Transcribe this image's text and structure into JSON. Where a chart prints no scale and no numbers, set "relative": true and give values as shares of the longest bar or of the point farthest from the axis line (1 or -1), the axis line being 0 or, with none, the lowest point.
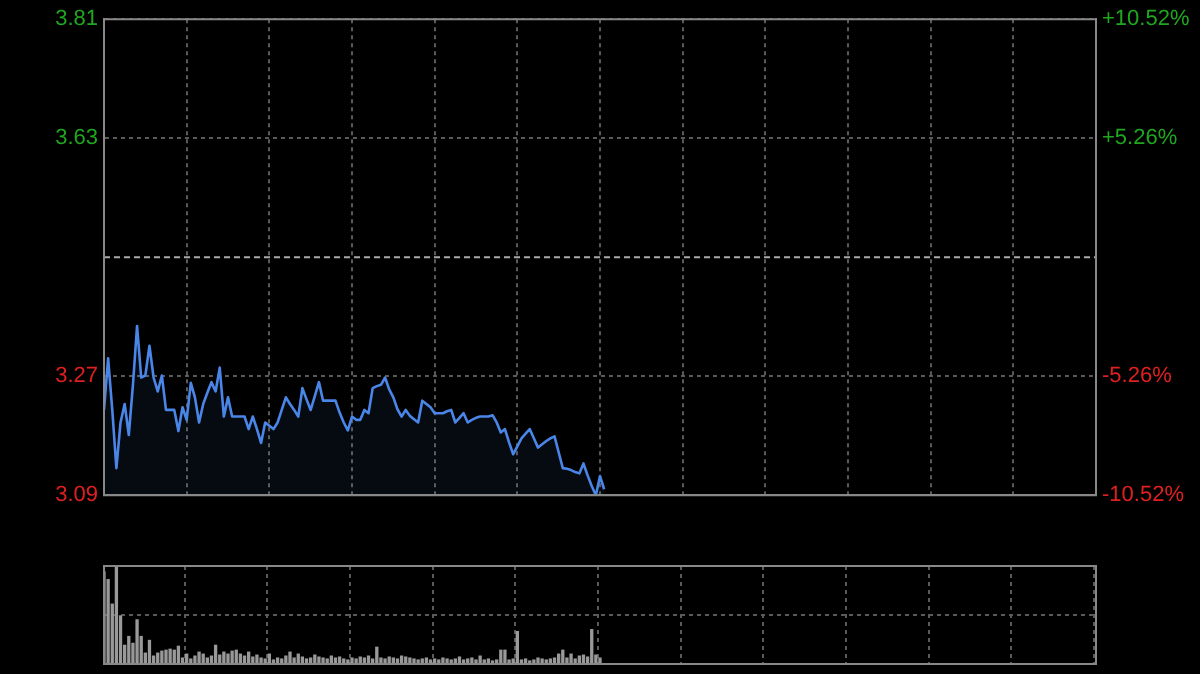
{
  "chart_data": [
    {
      "type": "area",
      "categories": [
        null,
        null,
        null,
        null,
        null,
        null,
        null,
        null,
        null,
        null,
        null,
        null,
        null,
        null,
        null,
        null,
        null,
        null,
        null,
        null,
        null,
        null,
        null,
        null,
        null,
        null,
        null,
        null,
        null,
        null,
        null,
        null,
        null,
        null,
        null,
        null,
        null,
        null,
        null,
        null,
        null,
        null,
        null,
        null,
        null,
        null,
        null,
        null,
        null,
        null,
        null,
        null,
        null,
        null,
        null,
        null,
        null,
        null,
        null,
        null,
        null,
        null,
        null,
        null,
        null,
        null,
        null,
        null,
        null,
        null,
        null,
        null,
        null,
        null,
        null,
        null,
        null,
        null,
        null,
        null,
        null,
        null,
        null,
        null,
        null,
        null,
        null,
        null,
        null,
        null,
        null,
        null,
        null,
        null,
        null,
        null,
        null,
        null,
        null,
        null,
        null,
        null,
        null,
        null,
        null,
        null,
        null,
        null,
        null,
        null,
        null,
        null,
        null,
        null,
        null,
        null,
        null,
        null,
        null,
        null,
        null,
        null,
        null,
        null,
        null,
        null,
        null,
        null,
        null,
        null,
        null,
        null,
        null,
        null,
        null,
        null,
        null,
        null,
        null,
        null,
        null,
        null,
        null,
        null,
        null,
        null,
        null,
        null,
        null,
        null,
        null,
        null,
        null,
        null,
        null,
        null,
        null,
        null,
        null,
        null,
        null,
        null,
        null,
        null,
        null,
        null,
        null,
        null,
        null,
        null,
        null,
        null,
        null,
        null,
        null,
        null,
        null,
        null,
        null,
        null,
        null,
        null,
        null,
        null,
        null,
        null,
        null,
        null,
        null,
        null,
        null,
        null,
        null,
        null,
        null,
        null,
        null,
        null,
        null,
        null,
        null,
        null,
        null,
        null,
        null,
        null,
        null,
        null,
        null,
        null,
        null,
        null,
        null,
        null,
        null,
        null,
        null,
        null,
        null,
        null,
        null,
        null,
        null,
        null,
        null,
        null,
        null,
        null,
        null,
        null,
        null,
        null,
        null,
        null,
        null,
        null,
        null,
        null,
        null,
        null,
        null
      ],
      "series": [
        {
          "color": "#4a86e8",
          "values": [
            3.219,
            3.297,
            3.219,
            3.131,
            3.2,
            3.228,
            3.181,
            3.257,
            3.346,
            3.268,
            3.271,
            3.316,
            3.268,
            3.247,
            3.271,
            3.219,
            3.219,
            3.219,
            3.187,
            3.223,
            3.204,
            3.26,
            3.238,
            3.2,
            3.228,
            3.245,
            3.261,
            3.247,
            3.283,
            3.209,
            3.238,
            3.209,
            3.209,
            3.209,
            3.209,
            3.19,
            3.209,
            3.19,
            3.169,
            3.2,
            3.195,
            3.19,
            3.2,
            3.219,
            3.238,
            3.228,
            3.219,
            3.209,
            3.252,
            3.235,
            3.219,
            3.24,
            3.261,
            3.233,
            3.233,
            3.233,
            3.233,
            3.215,
            3.2,
            3.188,
            3.209,
            3.204,
            3.204,
            3.219,
            3.214,
            3.252,
            3.255,
            3.257,
            3.268,
            3.25,
            3.238,
            3.22,
            3.209,
            3.219,
            3.21,
            3.205,
            3.2,
            3.233,
            3.228,
            3.223,
            3.214,
            3.214,
            3.214,
            3.217,
            3.219,
            3.2,
            3.207,
            3.214,
            3.2,
            3.204,
            3.207,
            3.209,
            3.209,
            3.209,
            3.211,
            3.2,
            3.185,
            3.19,
            3.17,
            3.152,
            3.164,
            3.176,
            3.183,
            3.19,
            3.176,
            3.162,
            3.167,
            3.172,
            3.176,
            3.179,
            3.155,
            3.131,
            3.13,
            3.128,
            3.125,
            3.123,
            3.138,
            3.12,
            3.104,
            3.09,
            3.119,
            3.099,
            null,
            null,
            null,
            null,
            null,
            null,
            null,
            null,
            null,
            null,
            null,
            null,
            null,
            null,
            null,
            null,
            null,
            null,
            null,
            null,
            null,
            null,
            null,
            null,
            null,
            null,
            null,
            null,
            null,
            null,
            null,
            null,
            null,
            null,
            null,
            null,
            null,
            null,
            null,
            null,
            null,
            null,
            null,
            null,
            null,
            null,
            null,
            null,
            null,
            null,
            null,
            null,
            null,
            null,
            null,
            null,
            null,
            null,
            null,
            null,
            null,
            null,
            null,
            null,
            null,
            null,
            null,
            null,
            null,
            null,
            null,
            null,
            null,
            null,
            null,
            null,
            null,
            null,
            null,
            null,
            null,
            null,
            null,
            null,
            null,
            null,
            null,
            null,
            null,
            null,
            null,
            null,
            null,
            null,
            null,
            null,
            null,
            null,
            null,
            null,
            null,
            null,
            null,
            null,
            null,
            null,
            null,
            null,
            null,
            null,
            null,
            null,
            null,
            null,
            null,
            null,
            null,
            null,
            null
          ]
        }
      ],
      "ylim": [
        3.09,
        3.81
      ],
      "yticks": [
        3.09,
        3.27,
        3.63,
        3.81
      ],
      "y2lim": [
        -10.52,
        10.52
      ],
      "y2ticks": [
        {
          "value": -10.52,
          "label": "-10.52%"
        },
        {
          "value": -5.26,
          "label": "-5.26%"
        },
        {
          "value": 5.26,
          "label": "+5.26%"
        },
        {
          "value": 10.52,
          "label": "+10.52%"
        }
      ],
      "ref_lines": [
        {
          "axis": "y",
          "value": 3.45,
          "color": "#aaaaaa",
          "line_style": "dashed"
        }
      ],
      "grid": true,
      "legend": false
    },
    {
      "type": "bar",
      "relative": true,
      "color": "#999999",
      "categories": [
        null,
        null,
        null,
        null,
        null,
        null,
        null,
        null,
        null,
        null,
        null,
        null,
        null,
        null,
        null,
        null,
        null,
        null,
        null,
        null,
        null,
        null,
        null,
        null,
        null,
        null,
        null,
        null,
        null,
        null,
        null,
        null,
        null,
        null,
        null,
        null,
        null,
        null,
        null,
        null,
        null,
        null,
        null,
        null,
        null,
        null,
        null,
        null,
        null,
        null,
        null,
        null,
        null,
        null,
        null,
        null,
        null,
        null,
        null,
        null,
        null,
        null,
        null,
        null,
        null,
        null,
        null,
        null,
        null,
        null,
        null,
        null,
        null,
        null,
        null,
        null,
        null,
        null,
        null,
        null,
        null,
        null,
        null,
        null,
        null,
        null,
        null,
        null,
        null,
        null,
        null,
        null,
        null,
        null,
        null,
        null,
        null,
        null,
        null,
        null,
        null,
        null,
        null,
        null,
        null,
        null,
        null,
        null,
        null,
        null,
        null,
        null,
        null,
        null,
        null,
        null,
        null,
        null,
        null,
        null,
        null,
        null,
        null,
        null,
        null,
        null,
        null,
        null,
        null,
        null,
        null,
        null,
        null,
        null,
        null,
        null,
        null,
        null,
        null,
        null,
        null,
        null,
        null,
        null,
        null,
        null,
        null,
        null,
        null,
        null,
        null,
        null,
        null,
        null,
        null,
        null,
        null,
        null,
        null,
        null,
        null,
        null,
        null,
        null,
        null,
        null,
        null,
        null,
        null,
        null,
        null,
        null,
        null,
        null,
        null,
        null,
        null,
        null,
        null,
        null,
        null,
        null,
        null,
        null,
        null,
        null,
        null,
        null,
        null,
        null,
        null,
        null,
        null,
        null,
        null,
        null,
        null,
        null,
        null,
        null,
        null,
        null,
        null,
        null,
        null,
        null,
        null,
        null,
        null,
        null,
        null,
        null,
        null,
        null,
        null,
        null,
        null,
        null,
        null,
        null,
        null,
        null,
        null,
        null,
        null,
        null,
        null,
        null,
        null,
        null,
        null,
        null,
        null,
        null,
        null,
        null,
        null,
        null,
        null,
        null,
        null
      ],
      "values": [
        0.94,
        0.86,
        0.61,
        1,
        0.49,
        0.19,
        0.28,
        0.21,
        0.45,
        0.28,
        0.11,
        0.24,
        0.08,
        0.11,
        0.13,
        0.14,
        0.15,
        0.14,
        0.18,
        0.06,
        0.1,
        0.05,
        0.08,
        0.12,
        0.1,
        0.06,
        0.08,
        0.19,
        0.09,
        0.12,
        0.1,
        0.13,
        0.14,
        0.1,
        0.08,
        0.12,
        0.07,
        0.09,
        0.06,
        0.05,
        0.1,
        0.04,
        0.06,
        0.05,
        0.08,
        0.12,
        0.06,
        0.1,
        0.07,
        0.05,
        0.06,
        0.09,
        0.07,
        0.06,
        0.05,
        0.08,
        0.06,
        0.07,
        0.05,
        0.04,
        0.06,
        0.05,
        0.07,
        0.06,
        0.08,
        0.05,
        0.17,
        0.06,
        0.05,
        0.07,
        0.06,
        0.05,
        0.08,
        0.07,
        0.06,
        0.05,
        0.04,
        0.05,
        0.06,
        0.04,
        0.05,
        0.04,
        0.06,
        0.05,
        0.04,
        0.05,
        0.07,
        0.04,
        0.05,
        0.06,
        0.04,
        0.08,
        0.04,
        0.05,
        0.03,
        0.04,
        0.14,
        0.14,
        0.04,
        0.05,
        0.33,
        0.04,
        0.05,
        0.03,
        0.04,
        0.06,
        0.05,
        0.04,
        0.05,
        0.06,
        0.1,
        0.14,
        0.06,
        0.1,
        0.05,
        0.08,
        0.09,
        0.07,
        0.35,
        0.09,
        0.06,
        null,
        null,
        null,
        null,
        null,
        null,
        null,
        null,
        null,
        null,
        null,
        null,
        null,
        null,
        null,
        null,
        null,
        null,
        null,
        null,
        null,
        null,
        null,
        null,
        null,
        null,
        null,
        null,
        null,
        null,
        null,
        null,
        null,
        null,
        null,
        null,
        null,
        null,
        null,
        null,
        null,
        null,
        null,
        null,
        null,
        null,
        null,
        null,
        null,
        null,
        null,
        null,
        null,
        null,
        null,
        null,
        null,
        null,
        null,
        null,
        null,
        null,
        null,
        null,
        null,
        null,
        null,
        null,
        null,
        null,
        null,
        null,
        null,
        null,
        null,
        null,
        null,
        null,
        null,
        null,
        null,
        null,
        null,
        null,
        null,
        null,
        null,
        null,
        null,
        null,
        null,
        null,
        null,
        null,
        null,
        null,
        null,
        null,
        null,
        null,
        null,
        null,
        null,
        null,
        null,
        null,
        null,
        null,
        null,
        null,
        null,
        null,
        null,
        null,
        null,
        null,
        null,
        null,
        null,
        null
      ],
      "grid": true,
      "tick_labels": false,
      "legend": false
    }
  ]
}
